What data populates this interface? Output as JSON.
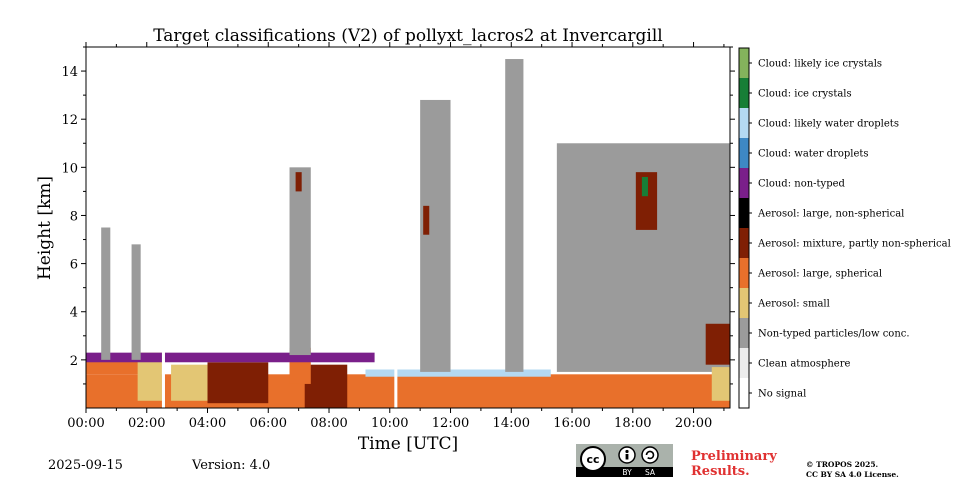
{
  "chart_data": {
    "type": "heatmap",
    "title": "Target classifications (V2) of pollyxt_lacros2 at Invercargill",
    "xlabel": "Time [UTC]",
    "ylabel": "Height [km]",
    "x_unit": "hours UTC",
    "xlim": [
      0,
      21.2
    ],
    "ylim": [
      0,
      15
    ],
    "x_ticks": [
      "00:00",
      "02:00",
      "04:00",
      "06:00",
      "08:00",
      "10:00",
      "12:00",
      "14:00",
      "16:00",
      "18:00",
      "20:00"
    ],
    "y_ticks": [
      "2",
      "4",
      "6",
      "8",
      "10",
      "12",
      "14"
    ],
    "legend_placement": "right colorbar",
    "classes": [
      {
        "label": "No signal",
        "color": "#ffffff"
      },
      {
        "label": "Clean atmosphere",
        "color": "#ececec"
      },
      {
        "label": "Non-typed particles/low conc.",
        "color": "#9b9b9b"
      },
      {
        "label": "Aerosol: small",
        "color": "#e3c674"
      },
      {
        "label": "Aerosol: large, spherical",
        "color": "#e8702b"
      },
      {
        "label": "Aerosol: mixture, partly non-spherical",
        "color": "#7f1f04"
      },
      {
        "label": "Aerosol: large, non-spherical",
        "color": "#000000"
      },
      {
        "label": "Cloud: non-typed",
        "color": "#7a1f8a"
      },
      {
        "label": "Cloud: water droplets",
        "color": "#3e88c4"
      },
      {
        "label": "Cloud: likely water droplets",
        "color": "#b4d9f2"
      },
      {
        "label": "Cloud: ice crystals",
        "color": "#177e36"
      },
      {
        "label": "Cloud: likely ice crystals",
        "color": "#84b35c"
      }
    ],
    "regions": [
      {
        "x": [
          0,
          21.2
        ],
        "y": [
          0,
          1.4
        ],
        "class": "Aerosol: large, spherical"
      },
      {
        "x": [
          0,
          2.4
        ],
        "y": [
          1.4,
          2.0
        ],
        "class": "Aerosol: large, spherical"
      },
      {
        "x": [
          1.7,
          2.5
        ],
        "y": [
          0.3,
          2.3
        ],
        "class": "Aerosol: small"
      },
      {
        "x": [
          2.8,
          4.0
        ],
        "y": [
          0.3,
          1.8
        ],
        "class": "Aerosol: small"
      },
      {
        "x": [
          4.0,
          6.0
        ],
        "y": [
          0.2,
          1.9
        ],
        "class": "Aerosol: mixture, partly non-spherical"
      },
      {
        "x": [
          7.2,
          8.6
        ],
        "y": [
          0,
          1.8
        ],
        "class": "Aerosol: mixture, partly non-spherical"
      },
      {
        "x": [
          6.7,
          7.4
        ],
        "y": [
          1.0,
          2.5
        ],
        "class": "Aerosol: large, spherical"
      },
      {
        "x": [
          0,
          9.5
        ],
        "y": [
          1.9,
          2.3
        ],
        "class": "Cloud: non-typed"
      },
      {
        "x": [
          9.2,
          15.3
        ],
        "y": [
          1.3,
          1.6
        ],
        "class": "Cloud: likely water droplets"
      },
      {
        "x": [
          0.5,
          0.8
        ],
        "y": [
          2.0,
          7.5
        ],
        "class": "Non-typed particles/low conc."
      },
      {
        "x": [
          1.5,
          1.8
        ],
        "y": [
          2.0,
          6.8
        ],
        "class": "Non-typed particles/low conc."
      },
      {
        "x": [
          6.7,
          7.4
        ],
        "y": [
          2.2,
          10.0
        ],
        "class": "Non-typed particles/low conc."
      },
      {
        "x": [
          6.9,
          7.1
        ],
        "y": [
          9.0,
          9.8
        ],
        "class": "Aerosol: mixture, partly non-spherical"
      },
      {
        "x": [
          11.0,
          12.0
        ],
        "y": [
          1.5,
          12.8
        ],
        "class": "Non-typed particles/low conc."
      },
      {
        "x": [
          11.1,
          11.3
        ],
        "y": [
          7.2,
          8.4
        ],
        "class": "Aerosol: mixture, partly non-spherical"
      },
      {
        "x": [
          13.8,
          14.4
        ],
        "y": [
          1.5,
          14.5
        ],
        "class": "Non-typed particles/low conc."
      },
      {
        "x": [
          15.5,
          21.2
        ],
        "y": [
          1.5,
          11.0
        ],
        "class": "Non-typed particles/low conc."
      },
      {
        "x": [
          18.1,
          18.8
        ],
        "y": [
          7.4,
          9.8
        ],
        "class": "Aerosol: mixture, partly non-spherical"
      },
      {
        "x": [
          18.3,
          18.5
        ],
        "y": [
          8.8,
          9.6
        ],
        "class": "Cloud: ice crystals"
      },
      {
        "x": [
          20.4,
          21.2
        ],
        "y": [
          1.8,
          3.5
        ],
        "class": "Aerosol: mixture, partly non-spherical"
      },
      {
        "x": [
          20.6,
          21.2
        ],
        "y": [
          0.3,
          1.7
        ],
        "class": "Aerosol: small"
      }
    ],
    "gaps": [
      {
        "x": [
          2.5,
          2.6
        ]
      },
      {
        "x": [
          10.15,
          10.25
        ]
      }
    ]
  },
  "footer": {
    "date": "2025-09-15",
    "version": "Version: 4.0",
    "preliminary": "Preliminary Results.",
    "copyright_line1": "© TROPOS 2025.",
    "copyright_line2": "CC BY SA 4.0 License.",
    "license_badge": {
      "cc": "cc",
      "by": "BY",
      "sa": "SA"
    }
  }
}
